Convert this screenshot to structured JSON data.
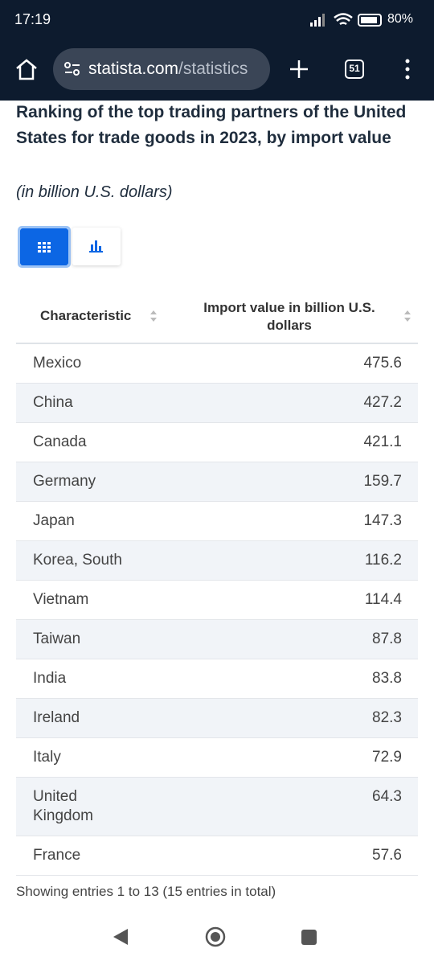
{
  "status_bar": {
    "time": "17:19",
    "battery": "80%"
  },
  "browser": {
    "url_domain": "statista.com",
    "url_path": "/statistics",
    "tab_count": "51"
  },
  "title": "Ranking of the top trading partners of the United States for trade goods in 2023, by import value",
  "subtitle": "(in billion U.S. dollars)",
  "table": {
    "columns": [
      "Characteristic",
      "Import value in billion U.S. dollars"
    ],
    "rows": [
      [
        "Mexico",
        475.6
      ],
      [
        "China",
        427.2
      ],
      [
        "Canada",
        421.1
      ],
      [
        "Germany",
        159.7
      ],
      [
        "Japan",
        147.3
      ],
      [
        "Korea, South",
        116.2
      ],
      [
        "Vietnam",
        114.4
      ],
      [
        "Taiwan",
        87.8
      ],
      [
        "India",
        83.8
      ],
      [
        "Ireland",
        82.3
      ],
      [
        "Italy",
        72.9
      ],
      [
        "United Kingdom",
        64.3
      ],
      [
        "France",
        57.6
      ]
    ]
  },
  "footer": "Showing entries 1 to 13 (15 entries in total)"
}
